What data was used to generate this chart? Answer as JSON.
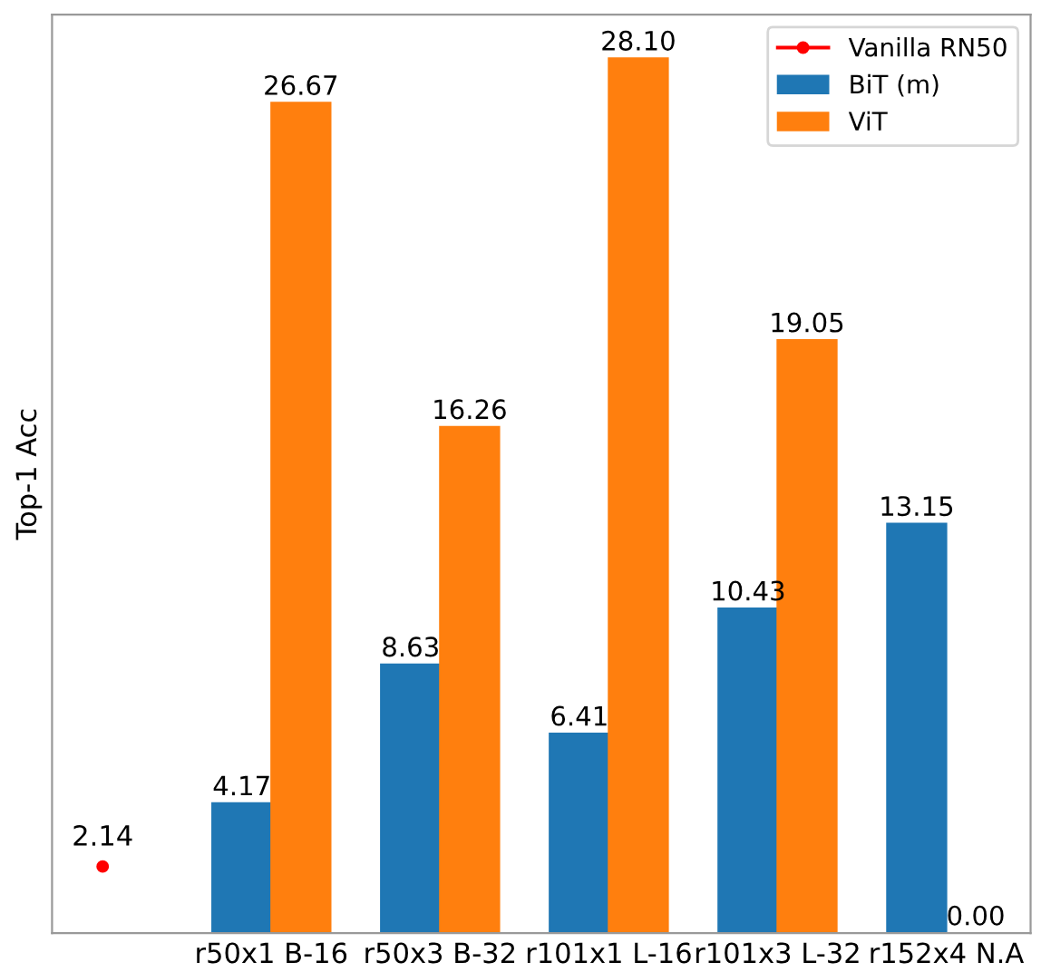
{
  "chart_data": {
    "type": "bar",
    "ylabel": "Top-1 Acc",
    "categories": [
      null,
      "r50x1 B-16",
      "r50x3 B-32",
      "r101x1 L-16",
      "r101x3 L-32",
      "r152x4 N.A"
    ],
    "series": [
      {
        "name": "Vanilla RN50",
        "type": "line",
        "color": "#ff0000",
        "marker": "circle",
        "values": [
          2.14,
          null,
          null,
          null,
          null,
          null
        ],
        "value_labels": [
          "2.14",
          null,
          null,
          null,
          null,
          null
        ]
      },
      {
        "name": "BiT (m)",
        "color": "#1f77b4",
        "values": [
          null,
          4.17,
          8.63,
          6.41,
          10.43,
          13.15
        ],
        "value_labels": [
          null,
          "4.17",
          "8.63",
          "6.41",
          "10.43",
          "13.15"
        ]
      },
      {
        "name": "ViT",
        "color": "#ff7f0e",
        "values": [
          null,
          26.67,
          16.26,
          28.1,
          19.05,
          0.0
        ],
        "value_labels": [
          null,
          "26.67",
          "16.26",
          "28.10",
          "19.05",
          "0.00"
        ]
      }
    ],
    "legend": "top right",
    "tick_labels": "x"
  }
}
